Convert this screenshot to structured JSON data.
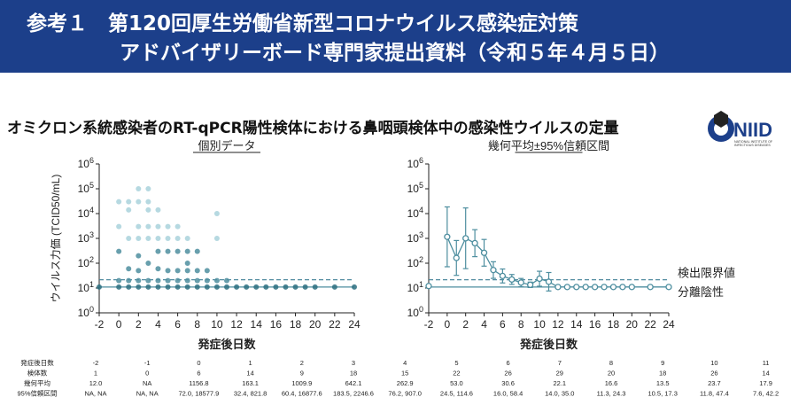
{
  "header": {
    "line1": "参考１　第120回厚生労働省新型コロナウイルス感染症対策",
    "line2": "アドバイザリーボード専門家提出資料（令和５年４月５日）"
  },
  "subtitle": "オミクロン系統感染者のRT-qPCR陽性検体における鼻咽頭検体中の感染性ウイルスの定量",
  "logo": {
    "text": "NIID",
    "small": [
      "NATIONAL INSTITUTE OF",
      "INFECTIOUS DISEASES"
    ]
  },
  "colors": {
    "banner": "#1c3f8a",
    "teal": "#4d8e9f",
    "teal_light": "#a9d2dc",
    "teal_dark": "#2c6f80",
    "dash": "#3f7f95"
  },
  "chart_data": [
    {
      "type": "scatter",
      "title": "個別データ",
      "xlabel": "発症後日数",
      "ylabel": "ウイルス力価 (TCID50/mL)",
      "xlim": [
        -2,
        24
      ],
      "ylim_log10": [
        0,
        6
      ],
      "y_scale": "log",
      "xticks": [
        "-2",
        "0",
        "2",
        "4",
        "6",
        "8",
        "10",
        "12",
        "14",
        "16",
        "18",
        "20",
        "22",
        "24"
      ],
      "yticks": [
        "10^0",
        "10^1",
        "10^2",
        "10^3",
        "10^4",
        "10^5",
        "10^6"
      ],
      "detection_limit": 21.5,
      "separation_negative": 11,
      "points": [
        {
          "x": -2,
          "y": 11
        },
        {
          "x": 0,
          "y": 11
        },
        {
          "x": 0,
          "y": 20
        },
        {
          "x": 0,
          "y": 300
        },
        {
          "x": 0,
          "y": 3000
        },
        {
          "x": 0,
          "y": 30000
        },
        {
          "x": 1,
          "y": 11
        },
        {
          "x": 1,
          "y": 20
        },
        {
          "x": 1,
          "y": 60
        },
        {
          "x": 1,
          "y": 1000
        },
        {
          "x": 1,
          "y": 14000
        },
        {
          "x": 1,
          "y": 30000
        },
        {
          "x": 2,
          "y": 11
        },
        {
          "x": 2,
          "y": 20
        },
        {
          "x": 2,
          "y": 50
        },
        {
          "x": 2,
          "y": 200
        },
        {
          "x": 2,
          "y": 1000
        },
        {
          "x": 2,
          "y": 3000
        },
        {
          "x": 2,
          "y": 30000
        },
        {
          "x": 2,
          "y": 100000
        },
        {
          "x": 3,
          "y": 11
        },
        {
          "x": 3,
          "y": 20
        },
        {
          "x": 3,
          "y": 100
        },
        {
          "x": 3,
          "y": 1000
        },
        {
          "x": 3,
          "y": 3000
        },
        {
          "x": 3,
          "y": 14000
        },
        {
          "x": 3,
          "y": 30000
        },
        {
          "x": 3,
          "y": 100000
        },
        {
          "x": 4,
          "y": 11
        },
        {
          "x": 4,
          "y": 20
        },
        {
          "x": 4,
          "y": 60
        },
        {
          "x": 4,
          "y": 300
        },
        {
          "x": 4,
          "y": 1000
        },
        {
          "x": 4,
          "y": 3000
        },
        {
          "x": 4,
          "y": 14000
        },
        {
          "x": 5,
          "y": 11
        },
        {
          "x": 5,
          "y": 20
        },
        {
          "x": 5,
          "y": 50
        },
        {
          "x": 5,
          "y": 300
        },
        {
          "x": 5,
          "y": 1000
        },
        {
          "x": 5,
          "y": 3000
        },
        {
          "x": 6,
          "y": 11
        },
        {
          "x": 6,
          "y": 20
        },
        {
          "x": 6,
          "y": 50
        },
        {
          "x": 6,
          "y": 300
        },
        {
          "x": 6,
          "y": 1000
        },
        {
          "x": 6,
          "y": 3000
        },
        {
          "x": 7,
          "y": 11
        },
        {
          "x": 7,
          "y": 20
        },
        {
          "x": 7,
          "y": 50
        },
        {
          "x": 7,
          "y": 100
        },
        {
          "x": 7,
          "y": 300
        },
        {
          "x": 7,
          "y": 1000
        },
        {
          "x": 8,
          "y": 11
        },
        {
          "x": 8,
          "y": 20
        },
        {
          "x": 8,
          "y": 50
        },
        {
          "x": 8,
          "y": 300
        },
        {
          "x": 9,
          "y": 11
        },
        {
          "x": 9,
          "y": 20
        },
        {
          "x": 9,
          "y": 50
        },
        {
          "x": 10,
          "y": 11
        },
        {
          "x": 10,
          "y": 20
        },
        {
          "x": 10,
          "y": 1000
        },
        {
          "x": 10,
          "y": 10000
        },
        {
          "x": 11,
          "y": 11
        },
        {
          "x": 11,
          "y": 20
        },
        {
          "x": 12,
          "y": 11
        },
        {
          "x": 13,
          "y": 11
        },
        {
          "x": 14,
          "y": 11
        },
        {
          "x": 15,
          "y": 11
        },
        {
          "x": 16,
          "y": 11
        },
        {
          "x": 17,
          "y": 11
        },
        {
          "x": 18,
          "y": 11
        },
        {
          "x": 19,
          "y": 11
        },
        {
          "x": 20,
          "y": 11
        },
        {
          "x": 22,
          "y": 11
        },
        {
          "x": 24,
          "y": 11
        }
      ]
    },
    {
      "type": "line",
      "title": "幾何平均±95%信頼区間",
      "xlabel": "発症後日数",
      "xlim": [
        -2,
        24
      ],
      "ylim_log10": [
        0,
        6
      ],
      "y_scale": "log",
      "xticks": [
        "-2",
        "0",
        "2",
        "4",
        "6",
        "8",
        "10",
        "12",
        "14",
        "16",
        "18",
        "20",
        "22",
        "24"
      ],
      "yticks": [
        "10^0",
        "10^1",
        "10^2",
        "10^3",
        "10^4",
        "10^5",
        "10^6"
      ],
      "reference_lines": [
        {
          "label": "検出限界値",
          "y": 21.5,
          "style": "dashed"
        },
        {
          "label": "分離陰性",
          "y": 11,
          "style": "solid"
        }
      ],
      "series": [
        {
          "x": [
            -2,
            0,
            1,
            2,
            3,
            4,
            5,
            6,
            7,
            8,
            9,
            10,
            11,
            12,
            13,
            14,
            15,
            16,
            17,
            18,
            19,
            20,
            22,
            24
          ],
          "y": [
            12.0,
            1156.8,
            163.1,
            1009.9,
            642.1,
            262.9,
            53.0,
            30.6,
            22.1,
            16.6,
            13.5,
            23.7,
            17.9,
            11,
            11,
            11,
            11,
            11,
            11,
            11,
            11,
            11,
            11,
            11
          ],
          "ci": [
            null,
            [
              72.0,
              18577.9
            ],
            [
              32.4,
              821.8
            ],
            [
              60.4,
              16877.6
            ],
            [
              183.5,
              2246.6
            ],
            [
              76.2,
              907.0
            ],
            [
              24.5,
              114.6
            ],
            [
              16.0,
              58.4
            ],
            [
              14.0,
              35.0
            ],
            [
              11.3,
              24.3
            ],
            [
              10.5,
              17.3
            ],
            [
              11.8,
              47.4
            ],
            [
              7.6,
              42.2
            ],
            null,
            null,
            null,
            null,
            null,
            null,
            null,
            null,
            null,
            null,
            null
          ]
        }
      ]
    }
  ],
  "stats_table": {
    "row_labels": [
      "発症後日数",
      "検体数",
      "幾何平均",
      "95%信頼区間"
    ],
    "columns": [
      {
        "day": "-2",
        "n": "1",
        "gm": "12.0",
        "ci": "NA, NA"
      },
      {
        "day": "-1",
        "n": "0",
        "gm": "NA",
        "ci": "NA, NA"
      },
      {
        "day": "0",
        "n": "6",
        "gm": "1156.8",
        "ci": "72.0, 18577.9"
      },
      {
        "day": "1",
        "n": "14",
        "gm": "163.1",
        "ci": "32.4, 821.8"
      },
      {
        "day": "2",
        "n": "9",
        "gm": "1009.9",
        "ci": "60.4, 16877.6"
      },
      {
        "day": "3",
        "n": "18",
        "gm": "642.1",
        "ci": "183.5, 2246.6"
      },
      {
        "day": "4",
        "n": "15",
        "gm": "262.9",
        "ci": "76.2, 907.0"
      },
      {
        "day": "5",
        "n": "22",
        "gm": "53.0",
        "ci": "24.5, 114.6"
      },
      {
        "day": "6",
        "n": "26",
        "gm": "30.6",
        "ci": "16.0, 58.4"
      },
      {
        "day": "7",
        "n": "29",
        "gm": "22.1",
        "ci": "14.0, 35.0"
      },
      {
        "day": "8",
        "n": "20",
        "gm": "16.6",
        "ci": "11.3, 24.3"
      },
      {
        "day": "9",
        "n": "18",
        "gm": "13.5",
        "ci": "10.5, 17.3"
      },
      {
        "day": "10",
        "n": "26",
        "gm": "23.7",
        "ci": "11.8, 47.4"
      },
      {
        "day": "11",
        "n": "14",
        "gm": "17.9",
        "ci": "7.6, 42.2"
      }
    ]
  }
}
